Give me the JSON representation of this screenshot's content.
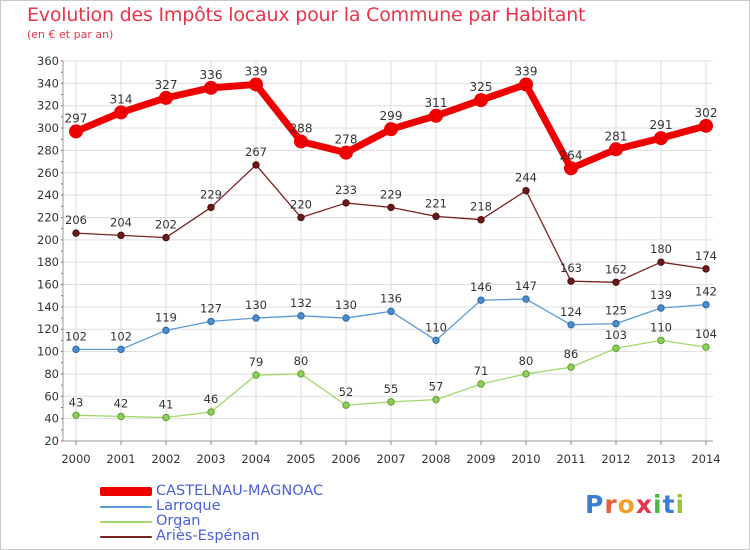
{
  "chart_data": {
    "type": "line",
    "title": "Evolution des Impôts locaux pour la Commune par Habitant",
    "subtitle": "(en € et par an)",
    "xlabel": "",
    "ylabel": "",
    "ylim": [
      20,
      360
    ],
    "yticks": [
      20,
      40,
      60,
      80,
      100,
      120,
      140,
      160,
      180,
      200,
      220,
      240,
      260,
      280,
      300,
      320,
      340,
      360
    ],
    "grid": true,
    "categories": [
      "2000",
      "2001",
      "2002",
      "2003",
      "2004",
      "2005",
      "2006",
      "2007",
      "2008",
      "2009",
      "2010",
      "2011",
      "2012",
      "2013",
      "2014"
    ],
    "series": [
      {
        "name": "CASTELNAU-MAGNOAC",
        "color": "#ee0000",
        "values": [
          297,
          314,
          327,
          336,
          339,
          288,
          278,
          299,
          311,
          325,
          339,
          264,
          281,
          291,
          302
        ]
      },
      {
        "name": "Larroque",
        "color": "#5b9bd5",
        "values": [
          102,
          102,
          119,
          127,
          130,
          132,
          130,
          136,
          110,
          146,
          147,
          124,
          125,
          139,
          142
        ]
      },
      {
        "name": "Organ",
        "color": "#a0d86c",
        "values": [
          43,
          42,
          41,
          46,
          79,
          80,
          52,
          55,
          57,
          71,
          80,
          86,
          103,
          110,
          104
        ]
      },
      {
        "name": "Ariès-Espénan",
        "color": "#7a2222",
        "values": [
          206,
          204,
          202,
          229,
          267,
          220,
          233,
          229,
          221,
          218,
          244,
          163,
          162,
          180,
          174
        ]
      }
    ],
    "legend_position": "bottom-left"
  },
  "logo": {
    "text": "Proxiti",
    "letters": [
      {
        "ch": "P",
        "color": "#3b7fd4"
      },
      {
        "ch": "r",
        "color": "#e8603a"
      },
      {
        "ch": "o",
        "color": "#f2a22c"
      },
      {
        "ch": "x",
        "color": "#e8344a"
      },
      {
        "ch": "i",
        "color": "#4bb84a"
      },
      {
        "ch": "t",
        "color": "#3b7fd4"
      },
      {
        "ch": "i",
        "color": "#9bc53d"
      }
    ]
  }
}
